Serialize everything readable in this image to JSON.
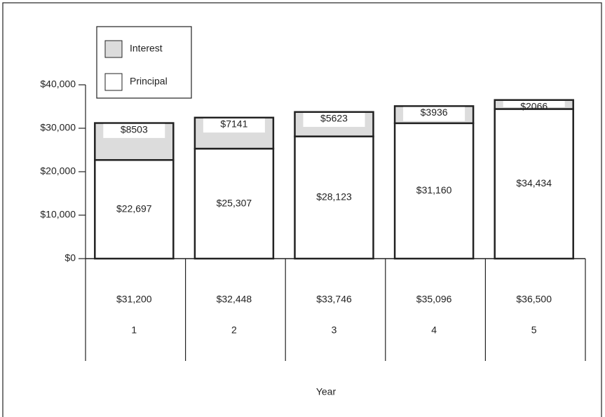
{
  "chart_data": {
    "type": "stacked-bar",
    "categories": [
      "1",
      "2",
      "3",
      "4",
      "5"
    ],
    "series": [
      {
        "name": "Principal",
        "color": "#ffffff",
        "values": [
          22697,
          25307,
          28123,
          31160,
          34434
        ],
        "value_labels": [
          "$22,697",
          "$25,307",
          "$28,123",
          "$31,160",
          "$34,434"
        ]
      },
      {
        "name": "Interest",
        "color": "#dcdcdc",
        "values": [
          8503,
          7141,
          5623,
          3936,
          2066
        ],
        "value_labels": [
          "$8503",
          "$7141",
          "$5623",
          "$3936",
          "$2066"
        ]
      }
    ],
    "totals": [
      "$31,200",
      "$32,448",
      "$33,746",
      "$35,096",
      "$36,500"
    ],
    "x_label": "Year",
    "ylim": [
      0,
      40000
    ],
    "yticks": [
      {
        "value": 0,
        "label": "$0"
      },
      {
        "value": 10000,
        "label": "$10,000"
      },
      {
        "value": 20000,
        "label": "$20,000"
      },
      {
        "value": 30000,
        "label": "$30,000"
      },
      {
        "value": 40000,
        "label": "$40,000"
      }
    ],
    "legend": "top-left"
  }
}
